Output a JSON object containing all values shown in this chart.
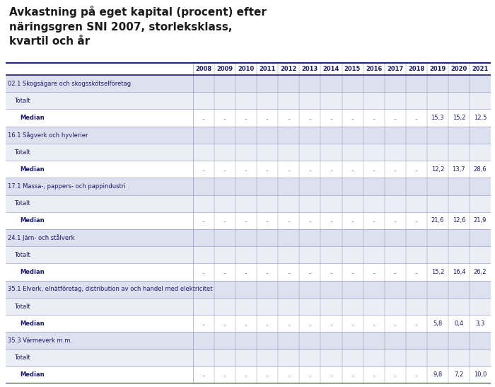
{
  "title_lines": [
    "Avkastning på eget kapital (procent) efter",
    "näringsgren SNI 2007, storleksklass,",
    "kvartil och år"
  ],
  "title_color": "#1a1a1a",
  "background_color": "#ffffff",
  "years": [
    "2008",
    "2009",
    "2010",
    "2011",
    "2012",
    "2013",
    "2014",
    "2015",
    "2016",
    "2017",
    "2018",
    "2019",
    "2020",
    "2021"
  ],
  "sections": [
    {
      "header": "02.1 Skogsägare och skogsskötselföretag",
      "rows": [
        {
          "label": "Totalt",
          "values": [
            "",
            "",
            "",
            "",
            "",
            "",
            "",
            "",
            "",
            "",
            "",
            "",
            "",
            ""
          ]
        },
        {
          "label": "Median",
          "values": [
            "..",
            "..",
            "..",
            "..",
            "..",
            "..",
            "..",
            "..",
            "..",
            "..",
            "..",
            "15,3",
            "15,2",
            "12,5"
          ]
        }
      ]
    },
    {
      "header": "16.1 Sågverk och hyvlerier",
      "rows": [
        {
          "label": "Totalt",
          "values": [
            "",
            "",
            "",
            "",
            "",
            "",
            "",
            "",
            "",
            "",
            "",
            "",
            "",
            ""
          ]
        },
        {
          "label": "Median",
          "values": [
            "..",
            "..",
            "..",
            "..",
            "..",
            "..",
            "..",
            "..",
            "..",
            "..",
            "..",
            "12,2",
            "13,7",
            "28,6"
          ]
        }
      ]
    },
    {
      "header": "17.1 Massa-, pappers- och pappindustri",
      "rows": [
        {
          "label": "Totalt",
          "values": [
            "",
            "",
            "",
            "",
            "",
            "",
            "",
            "",
            "",
            "",
            "",
            "",
            "",
            ""
          ]
        },
        {
          "label": "Median",
          "values": [
            "..",
            "..",
            "..",
            "..",
            "..",
            "..",
            "..",
            "..",
            "..",
            "..",
            "..",
            "21,6",
            "12,6",
            "21,9"
          ]
        }
      ]
    },
    {
      "header": "24.1 Järn- och stålverk",
      "rows": [
        {
          "label": "Totalt",
          "values": [
            "",
            "",
            "",
            "",
            "",
            "",
            "",
            "",
            "",
            "",
            "",
            "",
            "",
            ""
          ]
        },
        {
          "label": "Median",
          "values": [
            "..",
            "..",
            "..",
            "..",
            "..",
            "..",
            "..",
            "..",
            "..",
            "..",
            "..",
            "15,2",
            "16,4",
            "26,2"
          ]
        }
      ]
    },
    {
      "header": "35.1 Elverk, elnätföretag, distribution av och handel med elektricitet",
      "rows": [
        {
          "label": "Totalt",
          "values": [
            "",
            "",
            "",
            "",
            "",
            "",
            "",
            "",
            "",
            "",
            "",
            "",
            "",
            ""
          ]
        },
        {
          "label": "Median",
          "values": [
            "..",
            "..",
            "..",
            "..",
            "..",
            "..",
            "..",
            "..",
            "..",
            "..",
            "..",
            "5,8",
            "0,4",
            "3,3"
          ]
        }
      ]
    },
    {
      "header": "35.3 Värmeverk m.m.",
      "rows": [
        {
          "label": "Totalt",
          "values": [
            "",
            "",
            "",
            "",
            "",
            "",
            "",
            "",
            "",
            "",
            "",
            "",
            "",
            ""
          ]
        },
        {
          "label": "Median",
          "values": [
            "..",
            "..",
            "..",
            "..",
            "..",
            "..",
            "..",
            "..",
            "..",
            "..",
            "..",
            "9,8",
            "7,2",
            "10,0"
          ]
        }
      ]
    }
  ],
  "dark_blue": "#1a1a6e",
  "line_color": "#8888bb",
  "section_bg": "#dde0ef",
  "totalt_bg": "#eceef6",
  "median_bg": "#ffffff",
  "header_year_bg": "#ffffff"
}
